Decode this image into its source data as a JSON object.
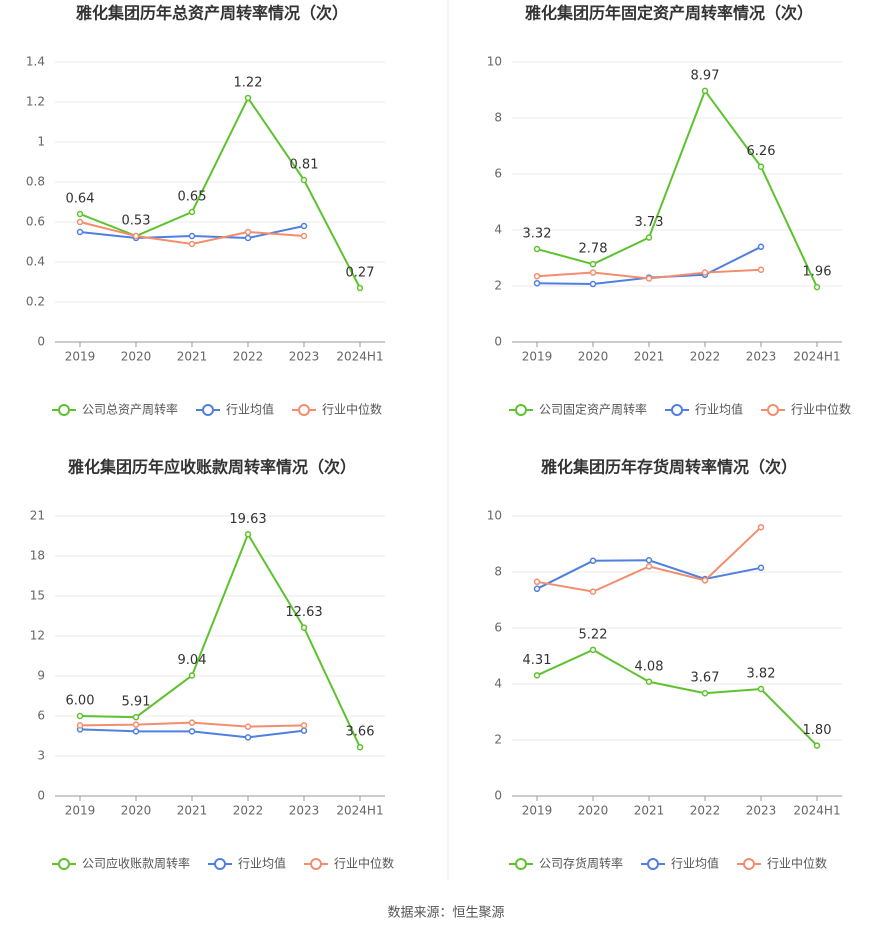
{
  "chart_data": [
    {
      "type": "line",
      "title": "雅化集团历年总资产周转率情况（次）",
      "categories": [
        "2019",
        "2020",
        "2021",
        "2022",
        "2023",
        "2024H1"
      ],
      "series": [
        {
          "name": "公司总资产周转率",
          "color": "#5ec22e",
          "values": [
            0.64,
            0.53,
            0.65,
            1.22,
            0.81,
            0.27
          ]
        },
        {
          "name": "行业均值",
          "color": "#4f7fdf",
          "values": [
            0.55,
            0.52,
            0.53,
            0.52,
            0.58,
            null
          ]
        },
        {
          "name": "行业中位数",
          "color": "#f28e6e",
          "values": [
            0.6,
            0.53,
            0.49,
            0.55,
            0.53,
            null
          ]
        }
      ],
      "ylim": [
        0,
        1.4
      ],
      "yticks": [
        0,
        0.2,
        0.4,
        0.6,
        0.8,
        1,
        1.2,
        1.4
      ],
      "grid": true
    },
    {
      "type": "line",
      "title": "雅化集团历年固定资产周转率情况（次）",
      "categories": [
        "2019",
        "2020",
        "2021",
        "2022",
        "2023",
        "2024H1"
      ],
      "series": [
        {
          "name": "公司固定资产周转率",
          "color": "#5ec22e",
          "values": [
            3.32,
            2.78,
            3.73,
            8.97,
            6.26,
            1.96
          ]
        },
        {
          "name": "行业均值",
          "color": "#4f7fdf",
          "values": [
            2.1,
            2.07,
            2.3,
            2.4,
            3.4,
            null
          ]
        },
        {
          "name": "行业中位数",
          "color": "#f28e6e",
          "values": [
            2.35,
            2.48,
            2.27,
            2.48,
            2.58,
            null
          ]
        }
      ],
      "ylim": [
        0,
        10
      ],
      "yticks": [
        0,
        2,
        4,
        6,
        8,
        10
      ],
      "grid": true
    },
    {
      "type": "line",
      "title": "雅化集团历年应收账款周转率情况（次）",
      "categories": [
        "2019",
        "2020",
        "2021",
        "2022",
        "2023",
        "2024H1"
      ],
      "series": [
        {
          "name": "公司应收账款周转率",
          "color": "#5ec22e",
          "values": [
            6,
            5.91,
            9.04,
            19.63,
            12.63,
            3.66
          ],
          "value_labels": [
            "6.00",
            "5.91",
            "9.04",
            "19.63",
            "12.63",
            "3.66"
          ]
        },
        {
          "name": "行业均值",
          "color": "#4f7fdf",
          "values": [
            5.0,
            4.85,
            4.85,
            4.4,
            4.9,
            null
          ]
        },
        {
          "name": "行业中位数",
          "color": "#f28e6e",
          "values": [
            5.3,
            5.35,
            5.5,
            5.2,
            5.3,
            null
          ]
        }
      ],
      "ylim": [
        0,
        21
      ],
      "yticks": [
        0,
        3,
        6,
        9,
        12,
        15,
        18,
        21
      ],
      "grid": true
    },
    {
      "type": "line",
      "title": "雅化集团历年存货周转率情况（次）",
      "categories": [
        "2019",
        "2020",
        "2021",
        "2022",
        "2023",
        "2024H1"
      ],
      "series": [
        {
          "name": "公司存货周转率",
          "color": "#5ec22e",
          "values": [
            4.31,
            5.22,
            4.08,
            3.67,
            3.82,
            1.8
          ],
          "value_labels": [
            "4.31",
            "5.22",
            "4.08",
            "3.67",
            "3.82",
            "1.80"
          ]
        },
        {
          "name": "行业均值",
          "color": "#4f7fdf",
          "values": [
            7.4,
            8.4,
            8.42,
            7.75,
            8.15,
            null
          ]
        },
        {
          "name": "行业中位数",
          "color": "#f28e6e",
          "values": [
            7.65,
            7.3,
            8.2,
            7.7,
            9.6,
            null
          ]
        }
      ],
      "ylim": [
        0,
        10
      ],
      "yticks": [
        0,
        2,
        4,
        6,
        8,
        10
      ],
      "grid": true
    }
  ],
  "source": "数据来源：恒生聚源"
}
